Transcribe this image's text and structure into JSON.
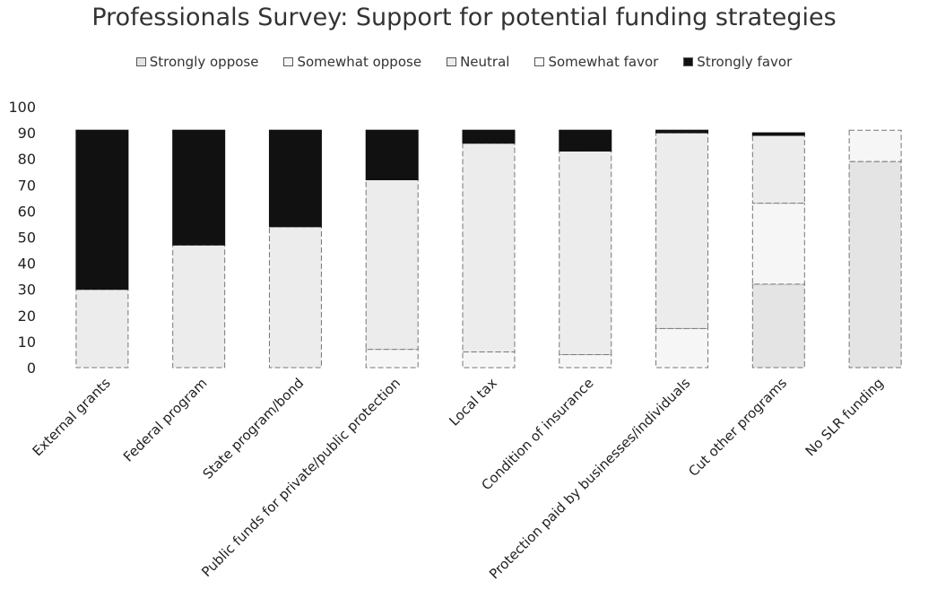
{
  "chart_data": {
    "type": "bar",
    "stacked": true,
    "title": "Professionals Survey: Support for potential funding strategies",
    "xlabel": "",
    "ylabel": "",
    "ylim": [
      0,
      100
    ],
    "yticks": [
      0,
      10,
      20,
      30,
      40,
      50,
      60,
      70,
      80,
      90,
      100
    ],
    "legend_position": "top",
    "grid": false,
    "categories": [
      "External grants",
      "Federal program",
      "State program/bond",
      "Public funds for private/public protection",
      "Local tax",
      "Condition of insurance",
      "Protection paid by businesses/individuals",
      "Cut other programs",
      "No SLR funding"
    ],
    "series": [
      {
        "name": "Strongly oppose",
        "color": "#e4e4e4",
        "values": [
          0,
          0,
          0,
          0,
          0,
          0,
          0,
          32,
          79
        ]
      },
      {
        "name": "Somewhat oppose",
        "color": "#f6f6f6",
        "values": [
          0,
          0,
          0,
          7,
          6,
          5,
          15,
          31,
          12
        ]
      },
      {
        "name": "Neutral",
        "color": "#ececec",
        "values": [
          30,
          47,
          54,
          65,
          80,
          78,
          75,
          26,
          0
        ]
      },
      {
        "name": "Somewhat favor",
        "color": "#fbfbfb",
        "values": [
          0,
          0,
          0,
          0,
          0,
          0,
          0,
          0,
          0
        ]
      },
      {
        "name": "Strongly favor",
        "color": "#111111",
        "values": [
          61,
          44,
          37,
          19,
          5,
          8,
          1,
          1,
          0
        ]
      }
    ]
  }
}
